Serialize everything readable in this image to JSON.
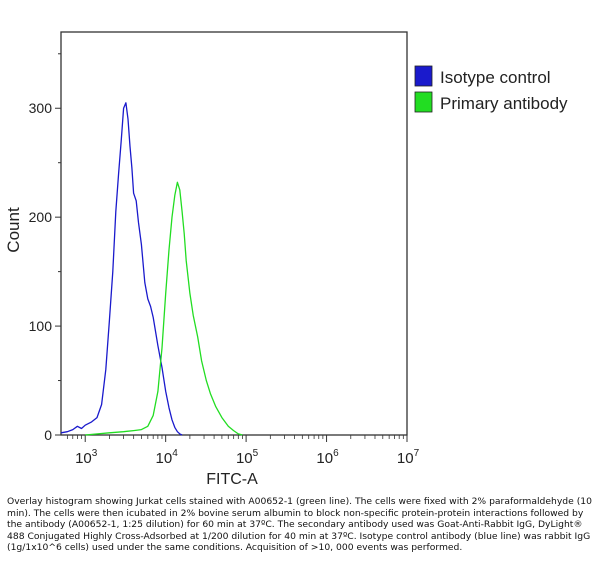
{
  "chart_data": {
    "type": "line",
    "title": "",
    "xlabel": "FITC-A",
    "ylabel": "Count",
    "x_scale": "log",
    "xlim": [
      500,
      10000000
    ],
    "ylim": [
      0,
      370
    ],
    "x_ticks": [
      {
        "value": 1000,
        "base": "10",
        "exp": "3"
      },
      {
        "value": 10000,
        "base": "10",
        "exp": "4"
      },
      {
        "value": 100000,
        "base": "10",
        "exp": "5"
      },
      {
        "value": 1000000,
        "base": "10",
        "exp": "6"
      },
      {
        "value": 10000000,
        "base": "10",
        "exp": "7"
      }
    ],
    "y_ticks": [
      0,
      100,
      200,
      300
    ],
    "legend_position": "top-right",
    "series": [
      {
        "name": "Isotype control",
        "color": "#1a1acc",
        "points": [
          [
            500,
            2
          ],
          [
            600,
            3
          ],
          [
            700,
            5
          ],
          [
            800,
            8
          ],
          [
            900,
            6
          ],
          [
            1000,
            9
          ],
          [
            1200,
            12
          ],
          [
            1400,
            16
          ],
          [
            1600,
            28
          ],
          [
            1800,
            60
          ],
          [
            2000,
            105
          ],
          [
            2200,
            150
          ],
          [
            2400,
            205
          ],
          [
            2600,
            240
          ],
          [
            2800,
            270
          ],
          [
            3000,
            300
          ],
          [
            3200,
            305
          ],
          [
            3400,
            290
          ],
          [
            3600,
            265
          ],
          [
            3800,
            245
          ],
          [
            4000,
            222
          ],
          [
            4300,
            215
          ],
          [
            4600,
            195
          ],
          [
            5000,
            175
          ],
          [
            5500,
            140
          ],
          [
            6000,
            125
          ],
          [
            6500,
            118
          ],
          [
            7000,
            108
          ],
          [
            8000,
            82
          ],
          [
            9000,
            62
          ],
          [
            10000,
            40
          ],
          [
            11000,
            25
          ],
          [
            12000,
            14
          ],
          [
            13000,
            7
          ],
          [
            14000,
            3
          ],
          [
            15000,
            1
          ],
          [
            16000,
            0
          ]
        ]
      },
      {
        "name": "Primary antibody",
        "color": "#22dd22",
        "points": [
          [
            1000,
            0
          ],
          [
            2000,
            2
          ],
          [
            3000,
            3
          ],
          [
            4000,
            4
          ],
          [
            5000,
            5
          ],
          [
            6000,
            8
          ],
          [
            7000,
            18
          ],
          [
            8000,
            40
          ],
          [
            9000,
            80
          ],
          [
            10000,
            130
          ],
          [
            11000,
            170
          ],
          [
            12000,
            200
          ],
          [
            13000,
            220
          ],
          [
            14000,
            232
          ],
          [
            15000,
            225
          ],
          [
            16000,
            205
          ],
          [
            17000,
            185
          ],
          [
            18000,
            160
          ],
          [
            20000,
            130
          ],
          [
            22000,
            110
          ],
          [
            25000,
            90
          ],
          [
            28000,
            68
          ],
          [
            32000,
            50
          ],
          [
            36000,
            38
          ],
          [
            42000,
            26
          ],
          [
            50000,
            16
          ],
          [
            60000,
            8
          ],
          [
            70000,
            4
          ],
          [
            80000,
            1
          ],
          [
            90000,
            0
          ]
        ]
      }
    ]
  },
  "caption": "Overlay histogram showing Jurkat cells stained with A00652-1 (green line). The cells were fixed with 2% paraformaldehyde (10 min). The cells were then icubated in 2% bovine serum albumin to block non-specific protein-protein interactions followed by the antibody (A00652-1, 1:25 dilution) for 60 min at 37ºC. The secondary antibody used was Goat-Anti-Rabbit IgG, DyLight® 488 Conjugated Highly Cross-Adsorbed at 1/200 dilution for 40 min at 37ºC. Isotype control antibody (blue line) was rabbit IgG (1g/1x10^6 cells) used under the same conditions. Acquisition of >10, 000 events was performed."
}
